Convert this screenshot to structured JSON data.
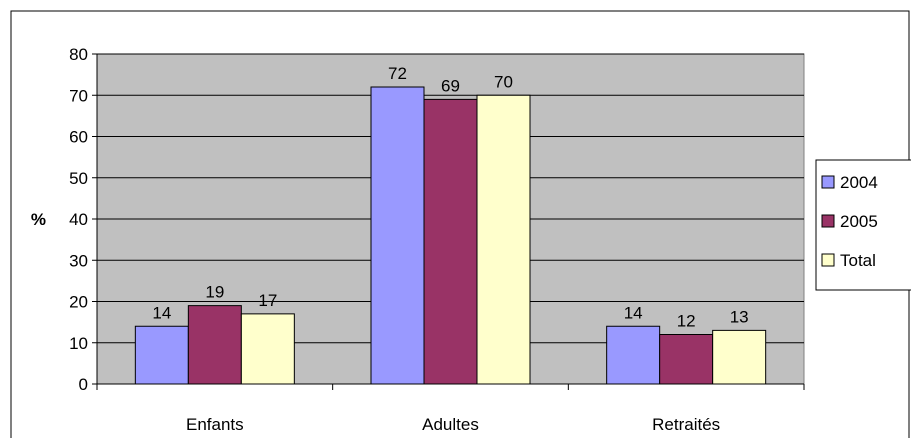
{
  "chart_data": {
    "type": "bar",
    "title": "",
    "xlabel": "",
    "ylabel": "%",
    "ylim": [
      0,
      80
    ],
    "yticks": [
      0,
      10,
      20,
      30,
      40,
      50,
      60,
      70,
      80
    ],
    "grid": true,
    "legend_position": "right",
    "categories": [
      "Enfants",
      "Adultes",
      "Retraités"
    ],
    "series": [
      {
        "name": "2004",
        "values": [
          14,
          72,
          14
        ],
        "color": "#9999ff"
      },
      {
        "name": "2005",
        "values": [
          19,
          69,
          12
        ],
        "color": "#993366"
      },
      {
        "name": "Total",
        "values": [
          17,
          70,
          13
        ],
        "color": "#ffffcc"
      }
    ],
    "plot_background": "#c0c0c0"
  }
}
